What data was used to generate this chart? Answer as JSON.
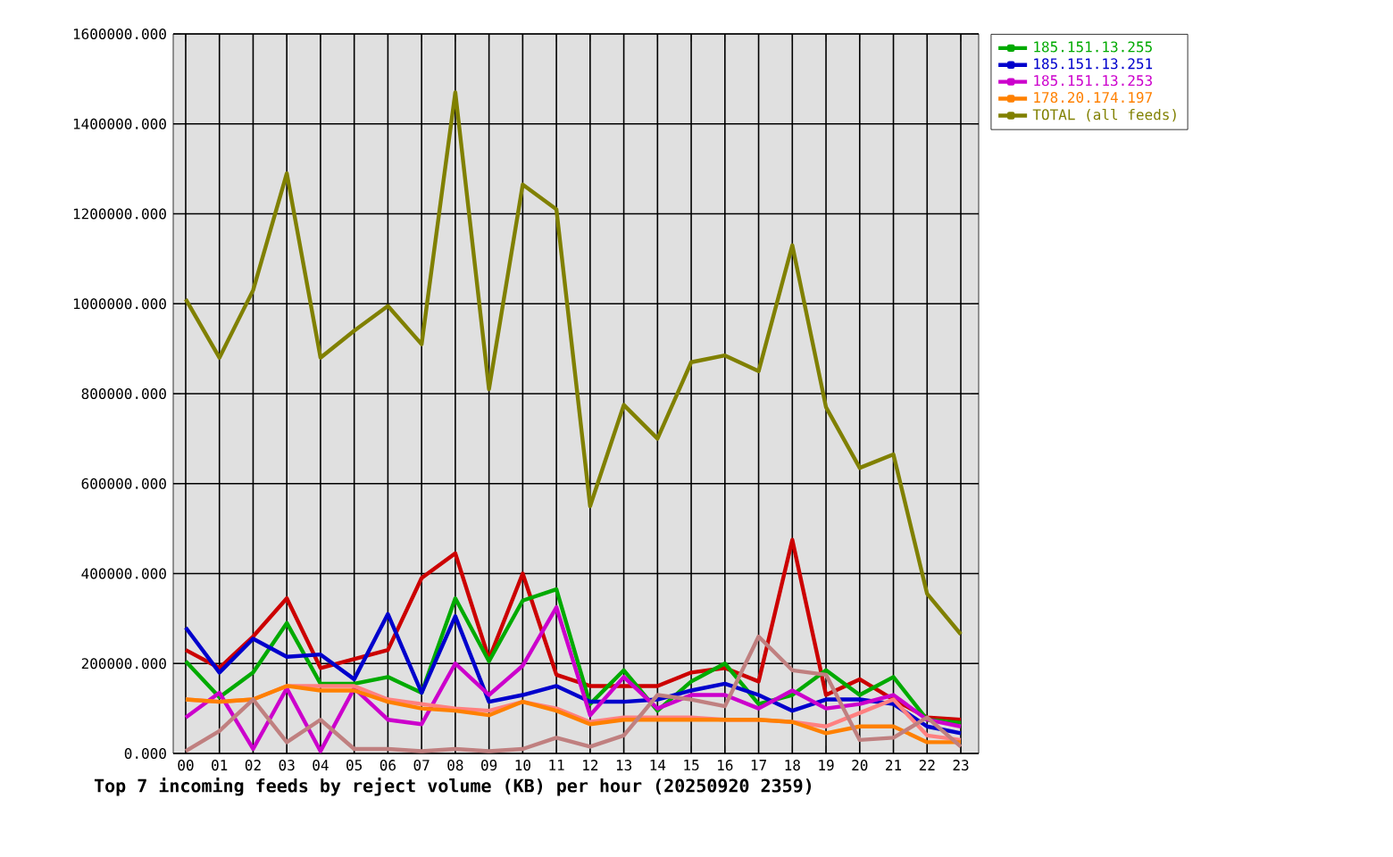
{
  "chart_data": {
    "type": "line",
    "title": "Top 7 incoming feeds by reject volume (KB) per hour (20250920 2359)",
    "categories": [
      "00",
      "01",
      "02",
      "03",
      "04",
      "05",
      "06",
      "07",
      "08",
      "09",
      "10",
      "11",
      "12",
      "13",
      "14",
      "15",
      "16",
      "17",
      "18",
      "19",
      "20",
      "21",
      "22",
      "23"
    ],
    "ylim": [
      0,
      1600000
    ],
    "yticks": [
      {
        "value": 0,
        "label": "0.000"
      },
      {
        "value": 200000,
        "label": "200000.000"
      },
      {
        "value": 400000,
        "label": "400000.000"
      },
      {
        "value": 600000,
        "label": "600000.000"
      },
      {
        "value": 800000,
        "label": "800000.000"
      },
      {
        "value": 1000000,
        "label": "1000000.000"
      },
      {
        "value": 1200000,
        "label": "1200000.000"
      },
      {
        "value": 1400000,
        "label": "1400000.000"
      },
      {
        "value": 1600000,
        "label": "1600000.000"
      }
    ],
    "grid": true,
    "legend": "top right",
    "series": [
      {
        "color": "#cc0000",
        "values": [
          230000,
          190000,
          260000,
          345000,
          190000,
          210000,
          230000,
          390000,
          445000,
          210000,
          400000,
          175000,
          150000,
          150000,
          150000,
          180000,
          190000,
          160000,
          475000,
          130000,
          165000,
          120000,
          80000,
          75000
        ]
      },
      {
        "name": "185.151.13.255",
        "color": "#00aa00",
        "values": [
          205000,
          125000,
          180000,
          290000,
          155000,
          155000,
          170000,
          135000,
          345000,
          205000,
          340000,
          365000,
          110000,
          185000,
          95000,
          160000,
          200000,
          110000,
          130000,
          185000,
          130000,
          170000,
          75000,
          68000
        ]
      },
      {
        "name": "185.151.13.251",
        "color": "#0000cc",
        "values": [
          280000,
          180000,
          255000,
          215000,
          220000,
          165000,
          310000,
          135000,
          305000,
          115000,
          130000,
          150000,
          115000,
          115000,
          120000,
          140000,
          155000,
          130000,
          95000,
          120000,
          120000,
          110000,
          60000,
          45000
        ]
      },
      {
        "name": "185.151.13.253",
        "color": "#cc00cc",
        "values": [
          80000,
          135000,
          10000,
          145000,
          5000,
          145000,
          75000,
          65000,
          200000,
          130000,
          195000,
          325000,
          85000,
          170000,
          100000,
          130000,
          130000,
          100000,
          140000,
          100000,
          110000,
          130000,
          75000,
          60000
        ]
      },
      {
        "color": "#ff8080",
        "values": [
          120000,
          115000,
          120000,
          150000,
          150000,
          150000,
          120000,
          110000,
          100000,
          95000,
          115000,
          100000,
          70000,
          80000,
          80000,
          80000,
          75000,
          75000,
          70000,
          60000,
          90000,
          120000,
          40000,
          30000
        ]
      },
      {
        "name": "178.20.174.197",
        "color": "#ff8000",
        "values": [
          120000,
          115000,
          120000,
          150000,
          140000,
          140000,
          115000,
          100000,
          95000,
          85000,
          115000,
          95000,
          65000,
          75000,
          75000,
          75000,
          75000,
          75000,
          70000,
          45000,
          60000,
          60000,
          25000,
          25000
        ]
      },
      {
        "color": "#c08080",
        "values": [
          5000,
          50000,
          120000,
          25000,
          75000,
          10000,
          10000,
          5000,
          10000,
          5000,
          10000,
          35000,
          15000,
          40000,
          130000,
          120000,
          105000,
          260000,
          185000,
          175000,
          30000,
          35000,
          80000,
          15000
        ]
      },
      {
        "name": "TOTAL (all feeds)",
        "color": "#808000",
        "values": [
          1010000,
          880000,
          1030000,
          1290000,
          880000,
          940000,
          995000,
          910000,
          1470000,
          810000,
          1265000,
          1210000,
          550000,
          775000,
          700000,
          870000,
          885000,
          850000,
          1130000,
          770000,
          635000,
          665000,
          355000,
          265000
        ]
      }
    ]
  }
}
